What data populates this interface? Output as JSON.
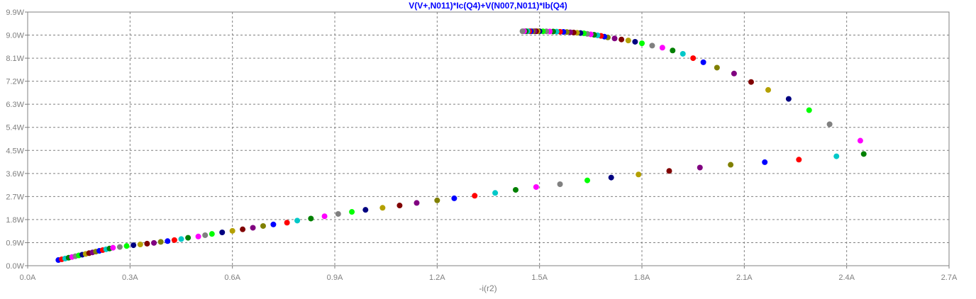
{
  "chart_data": {
    "type": "scatter",
    "title": "V(V+,N011)*Ic(Q4)+V(N007,N011)*Ib(Q4)",
    "xlabel": "-i(r2)",
    "ylabel": "",
    "xlim": [
      0,
      2.7
    ],
    "ylim": [
      0,
      9.9
    ],
    "grid": true,
    "x_ticks": [
      0,
      0.3,
      0.6,
      0.9,
      1.2,
      1.5,
      1.8,
      2.1,
      2.4,
      2.7
    ],
    "x_tick_labels": [
      "0.0A",
      "0.3A",
      "0.6A",
      "0.9A",
      "1.2A",
      "1.5A",
      "1.8A",
      "2.1A",
      "2.4A",
      "2.7A"
    ],
    "y_ticks": [
      0,
      0.9,
      1.8,
      2.7,
      3.6,
      4.5,
      5.4,
      6.3,
      7.2,
      8.1,
      9.0,
      9.9
    ],
    "y_tick_labels": [
      "0.0W",
      "0.9W",
      "1.8W",
      "2.7W",
      "3.6W",
      "4.5W",
      "5.4W",
      "6.3W",
      "7.2W",
      "8.1W",
      "9.0W",
      "9.9W"
    ],
    "marker_colors": [
      "#0000ff",
      "#ff0000",
      "#00c8c8",
      "#008000",
      "#ff00ff",
      "#808080",
      "#00ff00",
      "#000080",
      "#b4a000",
      "#800000",
      "#800080",
      "#808000"
    ],
    "series": [
      {
        "points": [
          [
            0.09,
            0.22
          ],
          [
            0.1,
            0.25
          ],
          [
            0.11,
            0.28
          ],
          [
            0.12,
            0.31
          ],
          [
            0.13,
            0.34
          ],
          [
            0.14,
            0.37
          ],
          [
            0.15,
            0.4
          ],
          [
            0.16,
            0.43
          ],
          [
            0.17,
            0.46
          ],
          [
            0.18,
            0.49
          ],
          [
            0.19,
            0.52
          ],
          [
            0.2,
            0.55
          ],
          [
            0.21,
            0.58
          ],
          [
            0.22,
            0.61
          ],
          [
            0.23,
            0.64
          ],
          [
            0.24,
            0.67
          ],
          [
            0.25,
            0.7
          ],
          [
            0.27,
            0.73
          ],
          [
            0.29,
            0.77
          ],
          [
            0.31,
            0.8
          ],
          [
            0.33,
            0.83
          ],
          [
            0.35,
            0.86
          ],
          [
            0.37,
            0.89
          ],
          [
            0.39,
            0.93
          ],
          [
            0.41,
            0.96
          ],
          [
            0.43,
            1.0
          ],
          [
            0.45,
            1.04
          ],
          [
            0.47,
            1.09
          ],
          [
            0.5,
            1.14
          ],
          [
            0.52,
            1.19
          ],
          [
            0.54,
            1.24
          ],
          [
            0.57,
            1.3
          ],
          [
            0.6,
            1.36
          ],
          [
            0.63,
            1.42
          ],
          [
            0.66,
            1.48
          ],
          [
            0.69,
            1.55
          ],
          [
            0.72,
            1.61
          ],
          [
            0.76,
            1.68
          ],
          [
            0.79,
            1.76
          ],
          [
            0.83,
            1.84
          ],
          [
            0.87,
            1.93
          ],
          [
            0.91,
            2.02
          ],
          [
            0.95,
            2.1
          ],
          [
            0.99,
            2.18
          ],
          [
            1.04,
            2.26
          ],
          [
            1.09,
            2.35
          ],
          [
            1.14,
            2.45
          ],
          [
            1.2,
            2.55
          ],
          [
            1.25,
            2.63
          ],
          [
            1.31,
            2.73
          ],
          [
            1.37,
            2.84
          ],
          [
            1.43,
            2.96
          ],
          [
            1.49,
            3.07
          ],
          [
            1.56,
            3.18
          ],
          [
            1.64,
            3.33
          ],
          [
            1.71,
            3.44
          ],
          [
            1.79,
            3.56
          ],
          [
            1.88,
            3.7
          ],
          [
            1.97,
            3.83
          ],
          [
            2.06,
            3.94
          ],
          [
            2.16,
            4.04
          ],
          [
            2.26,
            4.14
          ],
          [
            2.37,
            4.27
          ],
          [
            2.45,
            4.36
          ],
          [
            2.44,
            4.88
          ],
          [
            2.35,
            5.52
          ],
          [
            2.29,
            6.07
          ],
          [
            2.23,
            6.51
          ],
          [
            2.17,
            6.86
          ],
          [
            2.12,
            7.17
          ],
          [
            2.07,
            7.5
          ],
          [
            2.02,
            7.73
          ],
          [
            1.98,
            7.94
          ],
          [
            1.95,
            8.1
          ],
          [
            1.92,
            8.27
          ],
          [
            1.89,
            8.4
          ],
          [
            1.86,
            8.51
          ],
          [
            1.83,
            8.59
          ],
          [
            1.8,
            8.68
          ],
          [
            1.78,
            8.74
          ],
          [
            1.76,
            8.79
          ],
          [
            1.74,
            8.83
          ],
          [
            1.72,
            8.87
          ],
          [
            1.7,
            8.91
          ],
          [
            1.69,
            8.94
          ],
          [
            1.68,
            8.97
          ],
          [
            1.67,
            8.99
          ],
          [
            1.66,
            9.01
          ],
          [
            1.65,
            9.03
          ],
          [
            1.64,
            9.05
          ],
          [
            1.63,
            9.07
          ],
          [
            1.62,
            9.08
          ],
          [
            1.61,
            9.09
          ],
          [
            1.6,
            9.1
          ],
          [
            1.59,
            9.11
          ],
          [
            1.58,
            9.12
          ],
          [
            1.57,
            9.125
          ],
          [
            1.56,
            9.13
          ],
          [
            1.55,
            9.135
          ],
          [
            1.54,
            9.14
          ],
          [
            1.53,
            9.14
          ],
          [
            1.52,
            9.145
          ],
          [
            1.51,
            9.145
          ],
          [
            1.5,
            9.15
          ],
          [
            1.495,
            9.15
          ],
          [
            1.49,
            9.15
          ],
          [
            1.485,
            9.15
          ],
          [
            1.48,
            9.15
          ],
          [
            1.475,
            9.15
          ],
          [
            1.47,
            9.15
          ],
          [
            1.465,
            9.15
          ],
          [
            1.46,
            9.15
          ],
          [
            1.455,
            9.15
          ],
          [
            1.45,
            9.15
          ]
        ]
      }
    ]
  }
}
